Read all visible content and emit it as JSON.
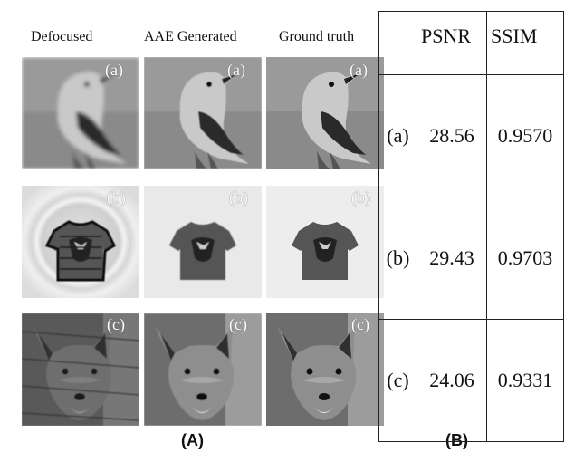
{
  "panel_a": {
    "label": "(A)",
    "columns": [
      "Defocused",
      "AAE Generated",
      "Ground truth"
    ],
    "rows": [
      {
        "tag": "(a)",
        "subject": "bird"
      },
      {
        "tag": "(b)",
        "subject": "t-shirt"
      },
      {
        "tag": "(c)",
        "subject": "fox"
      }
    ]
  },
  "panel_b": {
    "label": "(B)",
    "headers": [
      "",
      "PSNR",
      "SSIM"
    ],
    "rows": [
      {
        "id": "(a)",
        "psnr": "28.56",
        "ssim": "0.9570"
      },
      {
        "id": "(b)",
        "psnr": "29.43",
        "ssim": "0.9703"
      },
      {
        "id": "(c)",
        "psnr": "24.06",
        "ssim": "0.9331"
      }
    ]
  }
}
